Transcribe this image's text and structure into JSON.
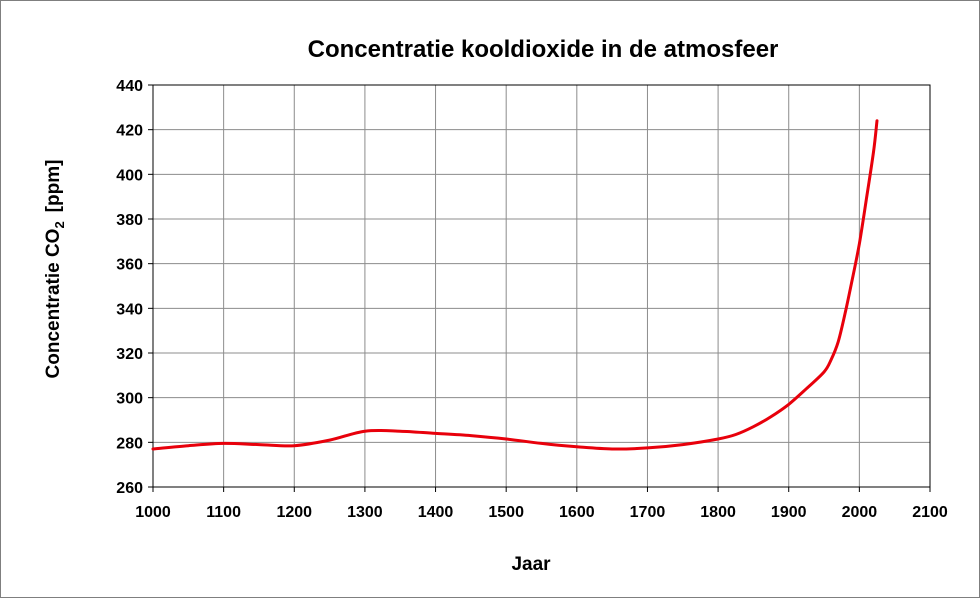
{
  "chart_data": {
    "type": "line",
    "title": "Concentratie kooldioxide in de atmosfeer",
    "xlabel": "Jaar",
    "ylabel_main": "Concentratie CO",
    "ylabel_sub": "2",
    "ylabel_unit": "[ppm]",
    "xlim": [
      1000,
      2100
    ],
    "ylim": [
      260,
      440
    ],
    "xticks": [
      1000,
      1100,
      1200,
      1300,
      1400,
      1500,
      1600,
      1700,
      1800,
      1900,
      2000,
      2100
    ],
    "yticks": [
      260,
      280,
      300,
      320,
      340,
      360,
      380,
      400,
      420,
      440
    ],
    "grid": true,
    "line_color": "#e8000b",
    "series": [
      {
        "x": [
          1000,
          1050,
          1100,
          1150,
          1200,
          1250,
          1300,
          1350,
          1400,
          1450,
          1500,
          1550,
          1600,
          1650,
          1700,
          1750,
          1800,
          1825,
          1850,
          1875,
          1900,
          1925,
          1950,
          1960,
          1970,
          1980,
          1990,
          2000,
          2010,
          2020,
          2025
        ],
        "y": [
          277,
          278.5,
          279.5,
          279,
          278.5,
          281,
          285,
          285,
          284,
          283,
          281.5,
          279.5,
          278,
          277,
          277.5,
          279,
          281.5,
          283.5,
          287,
          291.5,
          297,
          304,
          311.5,
          317,
          325,
          338,
          353,
          369,
          389,
          410,
          424
        ]
      }
    ]
  }
}
